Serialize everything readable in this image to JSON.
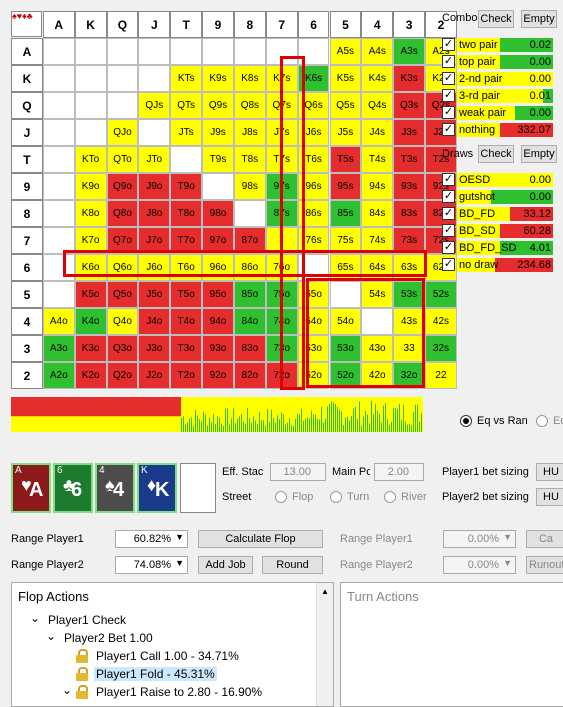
{
  "grid": {
    "ranks": [
      "A",
      "K",
      "Q",
      "J",
      "T",
      "9",
      "8",
      "7",
      "6",
      "5",
      "4",
      "3",
      "2"
    ],
    "corner": "♠♥♦♣",
    "colors": {
      "y": "#ffff00",
      "r": "#e52d2d",
      "g": "#2fc02f",
      "w": "#ffffff",
      "m": "#c8c830"
    },
    "cells": [
      [
        "w",
        "w",
        "w",
        "w",
        "w",
        "w",
        "w",
        "w",
        "w",
        "y",
        "y",
        "g",
        "y"
      ],
      [
        "w",
        "w",
        "w",
        "w",
        "y",
        "y",
        "y",
        "y",
        "g",
        "y",
        "y",
        "r",
        "y"
      ],
      [
        "w",
        "w",
        "w",
        "y",
        "y",
        "y",
        "y",
        "y",
        "y",
        "y",
        "y",
        "r",
        "r"
      ],
      [
        "w",
        "w",
        "y",
        "w",
        "y",
        "y",
        "y",
        "y",
        "y",
        "y",
        "y",
        "r",
        "r"
      ],
      [
        "w",
        "y",
        "y",
        "y",
        "w",
        "y",
        "y",
        "y",
        "y",
        "r",
        "y",
        "r",
        "r"
      ],
      [
        "w",
        "y",
        "r",
        "r",
        "r",
        "w",
        "y",
        "g",
        "y",
        "r",
        "y",
        "r",
        "r"
      ],
      [
        "w",
        "y",
        "r",
        "r",
        "r",
        "r",
        "w",
        "g",
        "y",
        "g",
        "y",
        "r",
        "r"
      ],
      [
        "w",
        "y",
        "r",
        "r",
        "r",
        "r",
        "r",
        "y",
        "y",
        "y",
        "y",
        "r",
        "r"
      ],
      [
        "w",
        "y",
        "y",
        "y",
        "y",
        "y",
        "y",
        "y",
        "w",
        "y",
        "y",
        "y",
        "y"
      ],
      [
        "w",
        "r",
        "r",
        "r",
        "r",
        "r",
        "g",
        "g",
        "y",
        "w",
        "y",
        "g",
        "g"
      ],
      [
        "y",
        "g",
        "y",
        "r",
        "r",
        "r",
        "g",
        "g",
        "y",
        "y",
        "w",
        "y",
        "y"
      ],
      [
        "g",
        "r",
        "r",
        "r",
        "r",
        "r",
        "r",
        "g",
        "y",
        "g",
        "y",
        "y",
        "g"
      ],
      [
        "g",
        "r",
        "r",
        "r",
        "r",
        "r",
        "r",
        "r",
        "y",
        "g",
        "y",
        "g",
        "y"
      ]
    ],
    "labels": [
      [
        "",
        "",
        "",
        "",
        "",
        "",
        "",
        "",
        "",
        "A5s",
        "A4s",
        "A3s",
        "A2s"
      ],
      [
        "",
        "",
        "",
        "",
        "KTs",
        "K9s",
        "K8s",
        "K7s",
        "K6s",
        "K5s",
        "K4s",
        "K3s",
        "K2s"
      ],
      [
        "",
        "",
        "",
        "QJs",
        "QTs",
        "Q9s",
        "Q8s",
        "Q7s",
        "Q6s",
        "Q5s",
        "Q4s",
        "Q3s",
        "Q2s"
      ],
      [
        "",
        "",
        "QJo",
        "",
        "JTs",
        "J9s",
        "J8s",
        "J7s",
        "J6s",
        "J5s",
        "J4s",
        "J3s",
        "J2s"
      ],
      [
        "",
        "KTo",
        "QTo",
        "JTo",
        "",
        "T9s",
        "T8s",
        "T7s",
        "T6s",
        "T5s",
        "T4s",
        "T3s",
        "T2s"
      ],
      [
        "",
        "K9o",
        "Q9o",
        "J9o",
        "T9o",
        "",
        "98s",
        "97s",
        "96s",
        "95s",
        "94s",
        "93s",
        "92s"
      ],
      [
        "",
        "K8o",
        "Q8o",
        "J8o",
        "T8o",
        "98o",
        "",
        "87s",
        "86s",
        "85s",
        "84s",
        "83s",
        "82s"
      ],
      [
        "",
        "K7o",
        "Q7o",
        "J7o",
        "T7o",
        "97o",
        "87o",
        "",
        "76s",
        "75s",
        "74s",
        "73s",
        "72s"
      ],
      [
        "",
        "K6o",
        "Q6o",
        "J6o",
        "T6o",
        "96o",
        "86o",
        "76o",
        "",
        "65s",
        "64s",
        "63s",
        "62s"
      ],
      [
        "",
        "K5o",
        "Q5o",
        "J5o",
        "T5o",
        "95o",
        "85o",
        "75o",
        "65o",
        "",
        "54s",
        "53s",
        "52s"
      ],
      [
        "A4o",
        "K4o",
        "Q4o",
        "J4o",
        "T4o",
        "94o",
        "84o",
        "74o",
        "64o",
        "54o",
        "",
        "43s",
        "42s"
      ],
      [
        "A3o",
        "K3o",
        "Q3o",
        "J3o",
        "T3o",
        "93o",
        "83o",
        "73o",
        "63o",
        "53o",
        "43o",
        "33",
        "32s"
      ],
      [
        "A2o",
        "K2o",
        "Q2o",
        "J2o",
        "T2o",
        "92o",
        "82o",
        "72o",
        "62o",
        "52o",
        "42o",
        "32o",
        "22"
      ]
    ]
  },
  "combo": {
    "title": "Combo",
    "check": "Check",
    "empty": "Empty",
    "rows": [
      {
        "name": "two pair",
        "value": "0.02",
        "fill": 0.55,
        "color": "#2fc02f"
      },
      {
        "name": "top pair",
        "value": "0.00",
        "fill": 0.55,
        "color": "#2fc02f"
      },
      {
        "name": "2-nd pair",
        "value": "0.00",
        "fill": 0.0,
        "color": "#2fc02f"
      },
      {
        "name": "3-rd pair",
        "value": "0.01",
        "fill": 0.1,
        "color": "#2fc02f"
      },
      {
        "name": "weak pair",
        "value": "0.00",
        "fill": 0.4,
        "color": "#2fc02f"
      },
      {
        "name": "nothing",
        "value": "332.07",
        "fill": 0.55,
        "color": "#e52d2d"
      }
    ]
  },
  "draws": {
    "title": "Draws",
    "check": "Check",
    "empty": "Empty",
    "rows": [
      {
        "name": "OESD",
        "value": "0.00",
        "fill": 0.0,
        "color": "#2fc02f"
      },
      {
        "name": "gutshot",
        "value": "0.00",
        "fill": 0.65,
        "color": "#2fc02f"
      },
      {
        "name": "BD_FD",
        "value": "33.12",
        "fill": 0.45,
        "color": "#e52d2d"
      },
      {
        "name": "BD_SD",
        "value": "60.28",
        "fill": 0.55,
        "color": "#e52d2d"
      },
      {
        "name": "BD_FD_SD",
        "value": "4.01",
        "fill": 0.55,
        "color": "#2fc02f"
      },
      {
        "name": "no draw",
        "value": "234.68",
        "fill": 0.6,
        "color": "#e52d2d"
      }
    ]
  },
  "eq": {
    "opt1": "Eq vs Ran",
    "opt2": "Eq"
  },
  "cards": [
    {
      "rank": "A",
      "suit": "♥",
      "big": "A",
      "bg": "#8b1a1a"
    },
    {
      "rank": "6",
      "suit": "♣",
      "big": "6",
      "bg": "#1e7a2e"
    },
    {
      "rank": "4",
      "suit": "♠",
      "big": "4",
      "bg": "#4d4d4d"
    },
    {
      "rank": "K",
      "suit": "♦",
      "big": "K",
      "bg": "#1a3a8b"
    }
  ],
  "settings": {
    "eff_stack_label": "Eff. Stack",
    "eff_stack": "13.00",
    "main_pot_label": "Main Pot",
    "main_pot": "2.00",
    "street_label": "Street",
    "streets": [
      "Flop",
      "Turn",
      "River"
    ],
    "p1_sizing": "Player1 bet sizing",
    "p2_sizing": "Player2 bet sizing",
    "hu": "HU"
  },
  "ranges": {
    "p1_label": "Range Player1",
    "p1_value": "60.82%",
    "p2_label": "Range Player2",
    "p2_value": "74.08%",
    "calc_flop": "Calculate Flop",
    "add_job": "Add Job",
    "round": "Round",
    "p1_label_r": "Range Player1",
    "p1_value_r": "0.00%",
    "p2_label_r": "Range Player2",
    "p2_value_r": "0.00%",
    "calc_r": "Ca",
    "runouts": "Runouts"
  },
  "flop_actions": {
    "title": "Flop Actions",
    "items": [
      {
        "text": "Player1 Check",
        "indent": 0,
        "lock": false,
        "arrow": "⌄",
        "sel": false
      },
      {
        "text": "Player2 Bet 1.00",
        "indent": 1,
        "lock": false,
        "arrow": "⌄",
        "sel": false
      },
      {
        "text": "Player1 Call 1.00 - 34.71%",
        "indent": 2,
        "lock": true,
        "arrow": "",
        "sel": false
      },
      {
        "text": "Player1 Fold - 45.31%",
        "indent": 2,
        "lock": true,
        "arrow": "",
        "sel": true
      },
      {
        "text": "Player1 Raise to 2.80 - 16.90%",
        "indent": 2,
        "lock": true,
        "arrow": "⌄",
        "sel": false
      }
    ]
  },
  "turn_actions": {
    "title": "Turn Actions"
  }
}
